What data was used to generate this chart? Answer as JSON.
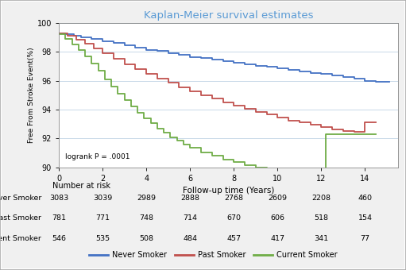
{
  "title": "Kaplan-Meier survival estimates",
  "xlabel": "Follow-up time (Years)",
  "ylabel": "Free From Stroke Event(%)",
  "ylim": [
    90,
    100
  ],
  "xlim": [
    0,
    15.5
  ],
  "xticks": [
    0,
    2,
    4,
    6,
    8,
    10,
    12,
    14
  ],
  "yticks": [
    90,
    92,
    94,
    96,
    98,
    100
  ],
  "logrank_text": "logrank P = .0001",
  "title_color": "#5b9bd5",
  "background_color": "#f0f0f0",
  "plot_bg_color": "#ffffff",
  "grid_color": "#c8d8e8",
  "border_color": "#aaaaaa",
  "colors": {
    "never": "#4472c4",
    "past": "#c0504d",
    "current": "#70ad47"
  },
  "number_at_risk": {
    "header": "Number at risk",
    "times": [
      0,
      2,
      4,
      6,
      8,
      10,
      12,
      14
    ],
    "never": [
      3083,
      3039,
      2989,
      2888,
      2768,
      2609,
      2208,
      460
    ],
    "past": [
      781,
      771,
      748,
      714,
      670,
      606,
      518,
      154
    ],
    "current": [
      546,
      535,
      508,
      484,
      457,
      417,
      341,
      77
    ]
  }
}
